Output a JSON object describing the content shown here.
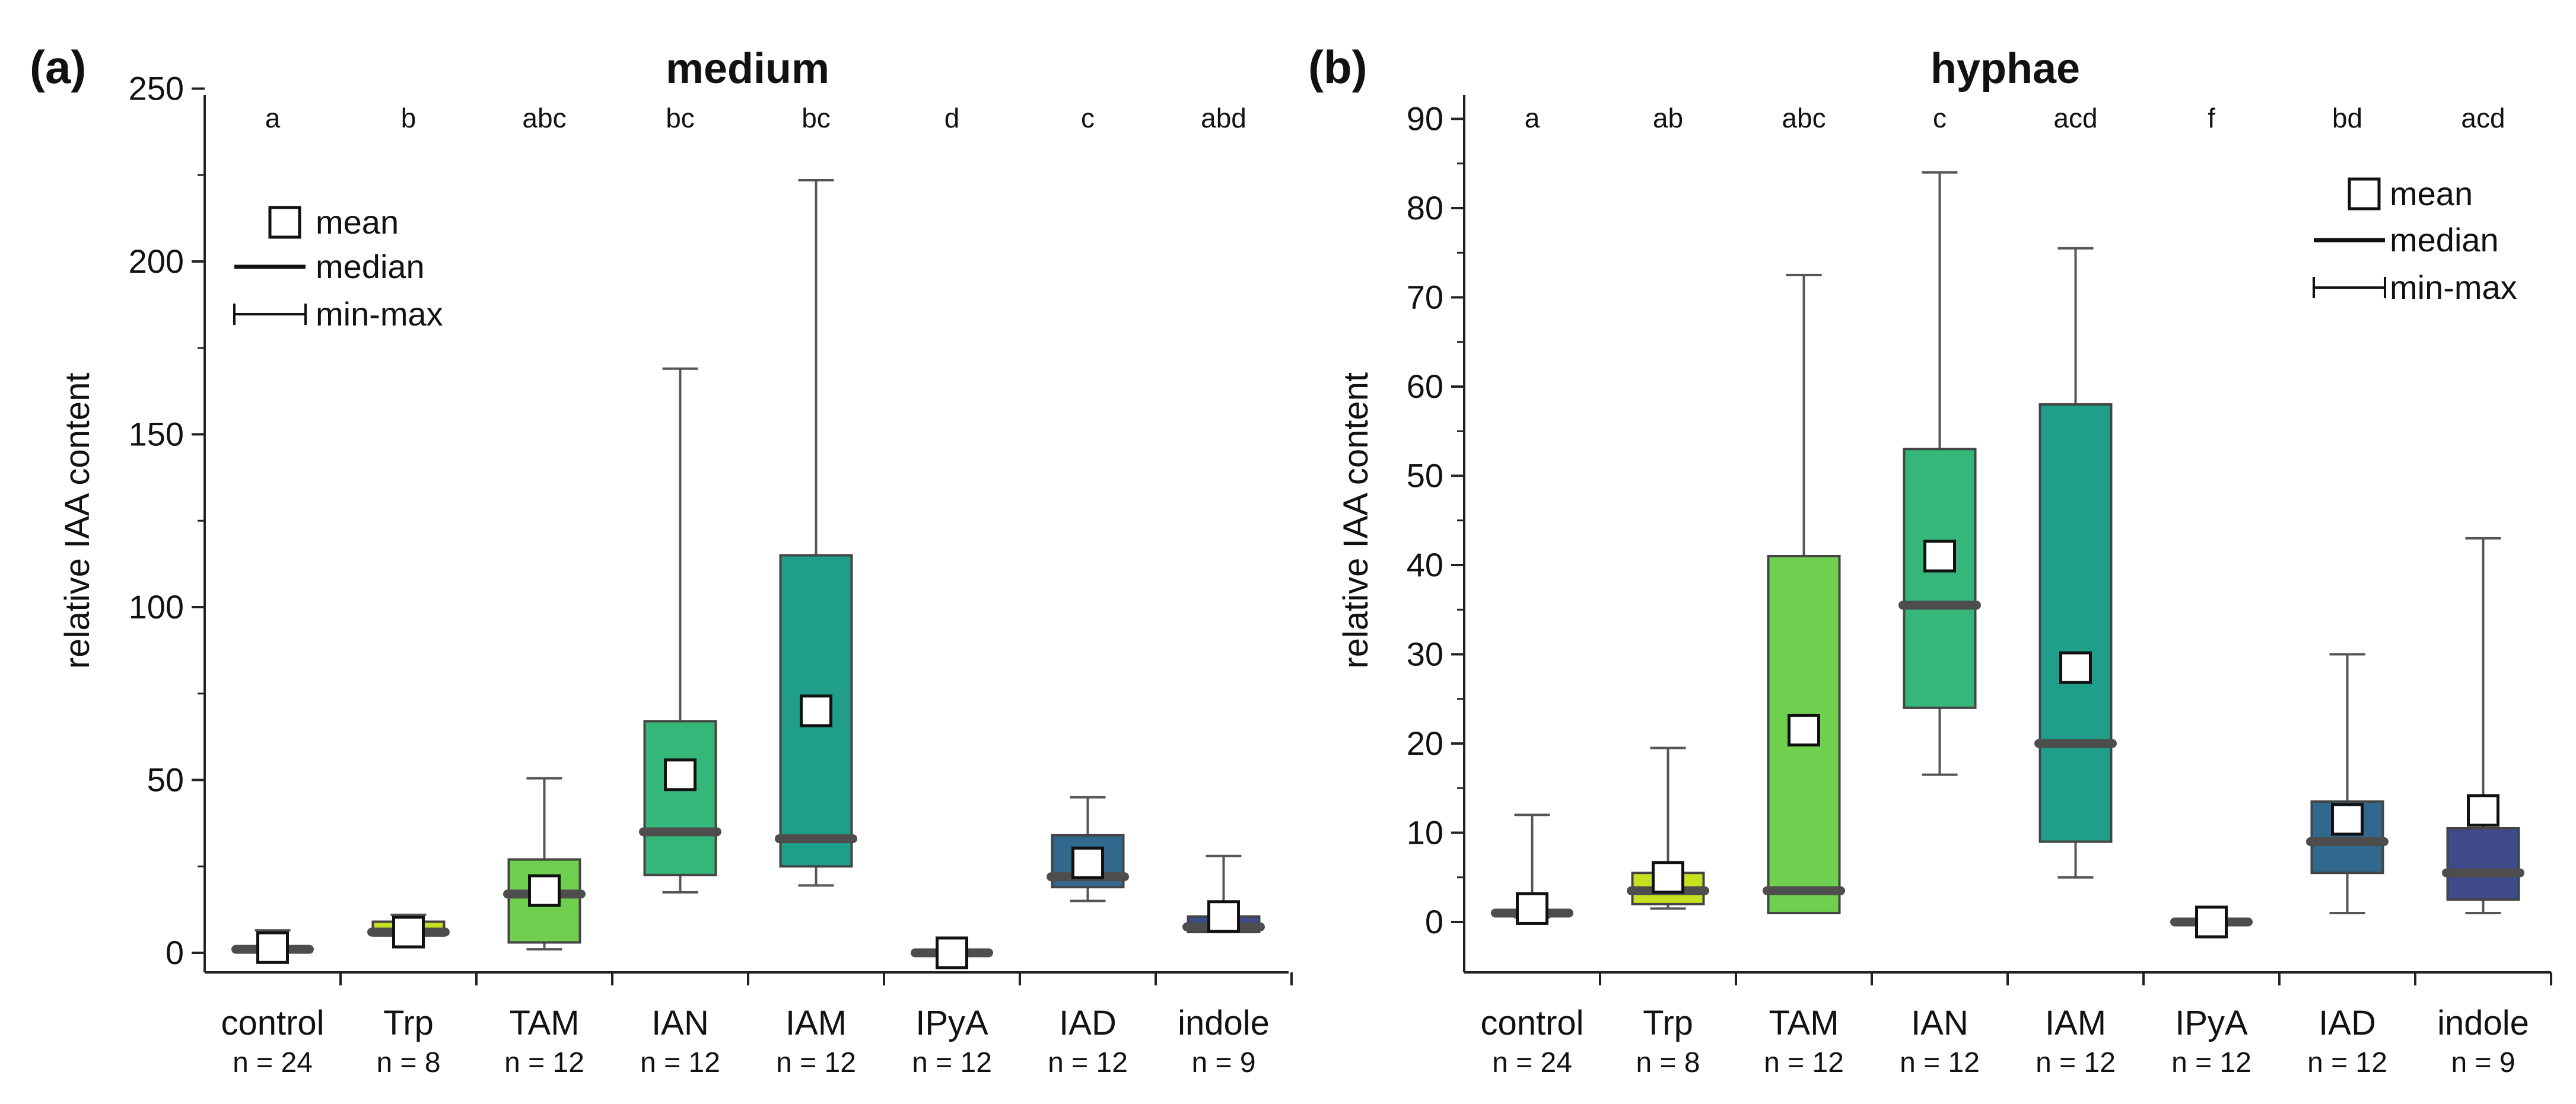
{
  "chart_data": [
    {
      "type": "box",
      "panel": "(a)",
      "title": "medium",
      "ylabel": "relative IAA content",
      "ylim": [
        -5,
        250
      ],
      "yticks": [
        0,
        50,
        100,
        150,
        200,
        250
      ],
      "legend": {
        "items": [
          "mean",
          "median",
          "min-max"
        ],
        "placement": "top-left"
      },
      "series": [
        {
          "category": "control",
          "n": "n = 24",
          "sig": "a",
          "min": 0.5,
          "q1": 0.5,
          "median": 1,
          "q3": 1.5,
          "max": 6.5,
          "mean": 1.5,
          "color": "#4a4a4a"
        },
        {
          "category": "Trp",
          "n": "n = 8",
          "sig": "b",
          "min": 5,
          "q1": 5,
          "median": 6,
          "q3": 9,
          "max": 11,
          "mean": 6,
          "color": "#c7e020"
        },
        {
          "category": "TAM",
          "n": "n = 12",
          "sig": "abc",
          "min": 1,
          "q1": 3,
          "median": 17,
          "q3": 27,
          "max": 50.5,
          "mean": 18,
          "color": "#6fcf4f"
        },
        {
          "category": "IAN",
          "n": "n = 12",
          "sig": "bc",
          "min": 17.5,
          "q1": 22.5,
          "median": 35,
          "q3": 67,
          "max": 169,
          "mean": 51.5,
          "color": "#35b779"
        },
        {
          "category": "IAM",
          "n": "n = 12",
          "sig": "bc",
          "min": 19.5,
          "q1": 25,
          "median": 33,
          "q3": 115,
          "max": 223.5,
          "mean": 70,
          "color": "#1f9e89"
        },
        {
          "category": "IPyA",
          "n": "n = 12",
          "sig": "d",
          "min": 0,
          "q1": 0,
          "median": 0,
          "q3": 0.5,
          "max": 0.5,
          "mean": 0,
          "color": "#4a4a4a"
        },
        {
          "category": "IAD",
          "n": "n = 12",
          "sig": "c",
          "min": 15,
          "q1": 19,
          "median": 22,
          "q3": 34,
          "max": 45,
          "mean": 26,
          "color": "#31688e"
        },
        {
          "category": "indole",
          "n": "n = 9",
          "sig": "abd",
          "min": 6,
          "q1": 6,
          "median": 7.5,
          "q3": 10.5,
          "max": 28,
          "mean": 10.5,
          "color": "#3e4a89"
        }
      ]
    },
    {
      "type": "box",
      "panel": "(b)",
      "title": "hyphae",
      "ylabel": "relative IAA content",
      "ylim": [
        -5,
        92
      ],
      "yticks": [
        0,
        10,
        20,
        30,
        40,
        50,
        60,
        70,
        80,
        90
      ],
      "legend": {
        "items": [
          "mean",
          "median",
          "min-max"
        ],
        "placement": "top-right"
      },
      "series": [
        {
          "category": "control",
          "n": "n = 24",
          "sig": "a",
          "min": 0.5,
          "q1": 0.8,
          "median": 1,
          "q3": 1.2,
          "max": 12,
          "mean": 1.5,
          "color": "#4a4a4a"
        },
        {
          "category": "Trp",
          "n": "n = 8",
          "sig": "ab",
          "min": 1.5,
          "q1": 2,
          "median": 3.5,
          "q3": 5.5,
          "max": 19.5,
          "mean": 5,
          "color": "#c7e020"
        },
        {
          "category": "TAM",
          "n": "n = 12",
          "sig": "abc",
          "min": 1,
          "q1": 1,
          "median": 3.5,
          "q3": 41,
          "max": 72.5,
          "mean": 21.5,
          "color": "#6fcf4f"
        },
        {
          "category": "IAN",
          "n": "n = 12",
          "sig": "c",
          "min": 16.5,
          "q1": 24,
          "median": 35.5,
          "q3": 53,
          "max": 84,
          "mean": 41,
          "color": "#35b779"
        },
        {
          "category": "IAM",
          "n": "n = 12",
          "sig": "acd",
          "min": 5,
          "q1": 9,
          "median": 20,
          "q3": 58,
          "max": 75.5,
          "mean": 28.5,
          "color": "#1f9e89"
        },
        {
          "category": "IPyA",
          "n": "n = 12",
          "sig": "f",
          "min": 0,
          "q1": 0,
          "median": 0,
          "q3": 0.2,
          "max": 0.2,
          "mean": 0,
          "color": "#4a4a4a"
        },
        {
          "category": "IAD",
          "n": "n = 12",
          "sig": "bd",
          "min": 1,
          "q1": 5.5,
          "median": 9,
          "q3": 13.5,
          "max": 30,
          "mean": 11.5,
          "color": "#31688e"
        },
        {
          "category": "indole",
          "n": "n = 9",
          "sig": "acd",
          "min": 1,
          "q1": 2.5,
          "median": 5.5,
          "q3": 10.5,
          "max": 43,
          "mean": 12.5,
          "color": "#3e4a89"
        }
      ]
    }
  ]
}
